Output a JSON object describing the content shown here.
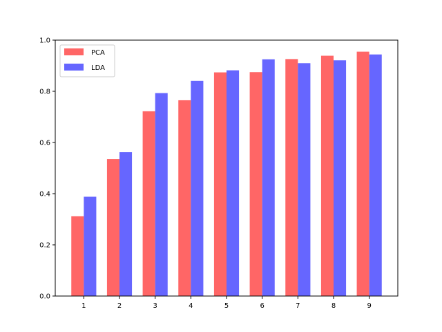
{
  "chart_data": {
    "type": "bar",
    "categories": [
      "1",
      "2",
      "3",
      "4",
      "5",
      "6",
      "7",
      "8",
      "9"
    ],
    "series": [
      {
        "name": "PCA",
        "color": "#ff6666",
        "values": [
          0.312,
          0.535,
          0.722,
          0.765,
          0.874,
          0.875,
          0.926,
          0.939,
          0.955
        ]
      },
      {
        "name": "LDA",
        "color": "#6666ff",
        "values": [
          0.388,
          0.562,
          0.793,
          0.841,
          0.882,
          0.925,
          0.91,
          0.921,
          0.944
        ]
      }
    ],
    "ylim": [
      0,
      1.0
    ],
    "yticks": [
      "0.0",
      "0.2",
      "0.4",
      "0.6",
      "0.8",
      "1.0"
    ],
    "legend_position": "top-left",
    "grid": false
  }
}
